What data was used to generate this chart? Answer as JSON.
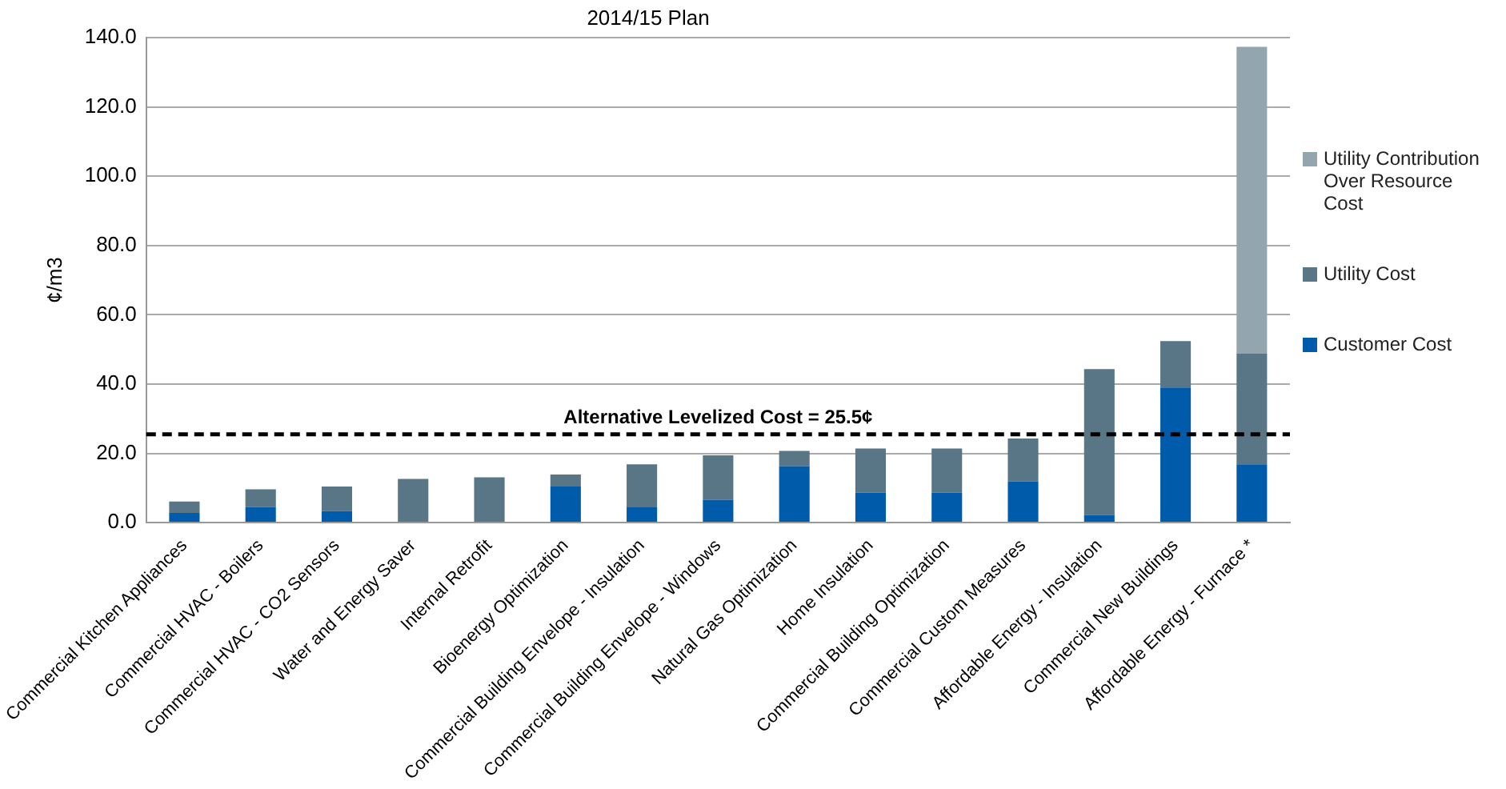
{
  "chart_data": {
    "type": "bar",
    "title": "2014/15 Plan",
    "ylabel": "¢/m3",
    "stacked": true,
    "categories": [
      "Commercial Kitchen Appliances",
      "Commercial HVAC - Boilers",
      "Commercial HVAC - CO2 Sensors",
      "Water and Energy Saver",
      "Internal Retrofit",
      "Bioenergy Optimization",
      "Commercial Building Envelope - Insulation",
      "Commercial Building Envelope - Windows",
      "Natural Gas Optimization",
      "Home Insulation",
      "Commercial Building Optimization",
      "Commercial Custom Measures",
      "Affordable Energy - Insulation",
      "Commercial New Buildings",
      "Affordable Energy - Furnace *"
    ],
    "series": [
      {
        "name": "Customer Cost",
        "color": "#005baa",
        "values": [
          2.8,
          4.5,
          3.3,
          0,
          0,
          10.4,
          4.4,
          6.6,
          16.3,
          8.6,
          8.6,
          11.9,
          2.2,
          39.0,
          16.8
        ]
      },
      {
        "name": "Utility Cost",
        "color": "#587686",
        "values": [
          3.3,
          5.1,
          7.1,
          12.6,
          13.1,
          3.5,
          12.4,
          12.8,
          4.4,
          12.8,
          12.8,
          12.4,
          42.1,
          13.4,
          32.0
        ]
      },
      {
        "name": "Utility Contribution Over Resource Cost",
        "color": "#93a6b0",
        "values": [
          null,
          null,
          null,
          null,
          null,
          null,
          null,
          null,
          null,
          null,
          null,
          null,
          null,
          null,
          88.6
        ]
      }
    ],
    "ylim": [
      0,
      140
    ],
    "yticks": [
      {
        "value": 0,
        "label": "0.0"
      },
      {
        "value": 20,
        "label": "20.0"
      },
      {
        "value": 40,
        "label": "40.0"
      },
      {
        "value": 60,
        "label": "60.0"
      },
      {
        "value": 80,
        "label": "80.0"
      },
      {
        "value": 100,
        "label": "100.0"
      },
      {
        "value": 120,
        "label": "120.0"
      },
      {
        "value": 140,
        "label": "140.0"
      }
    ],
    "grid": "y",
    "legend": "right",
    "ref_lines": [
      {
        "axis": "y",
        "value": 25.5,
        "label": "Alternative Levelized Cost = 25.5¢",
        "color": "#000000",
        "line_style": "dashed"
      }
    ]
  }
}
